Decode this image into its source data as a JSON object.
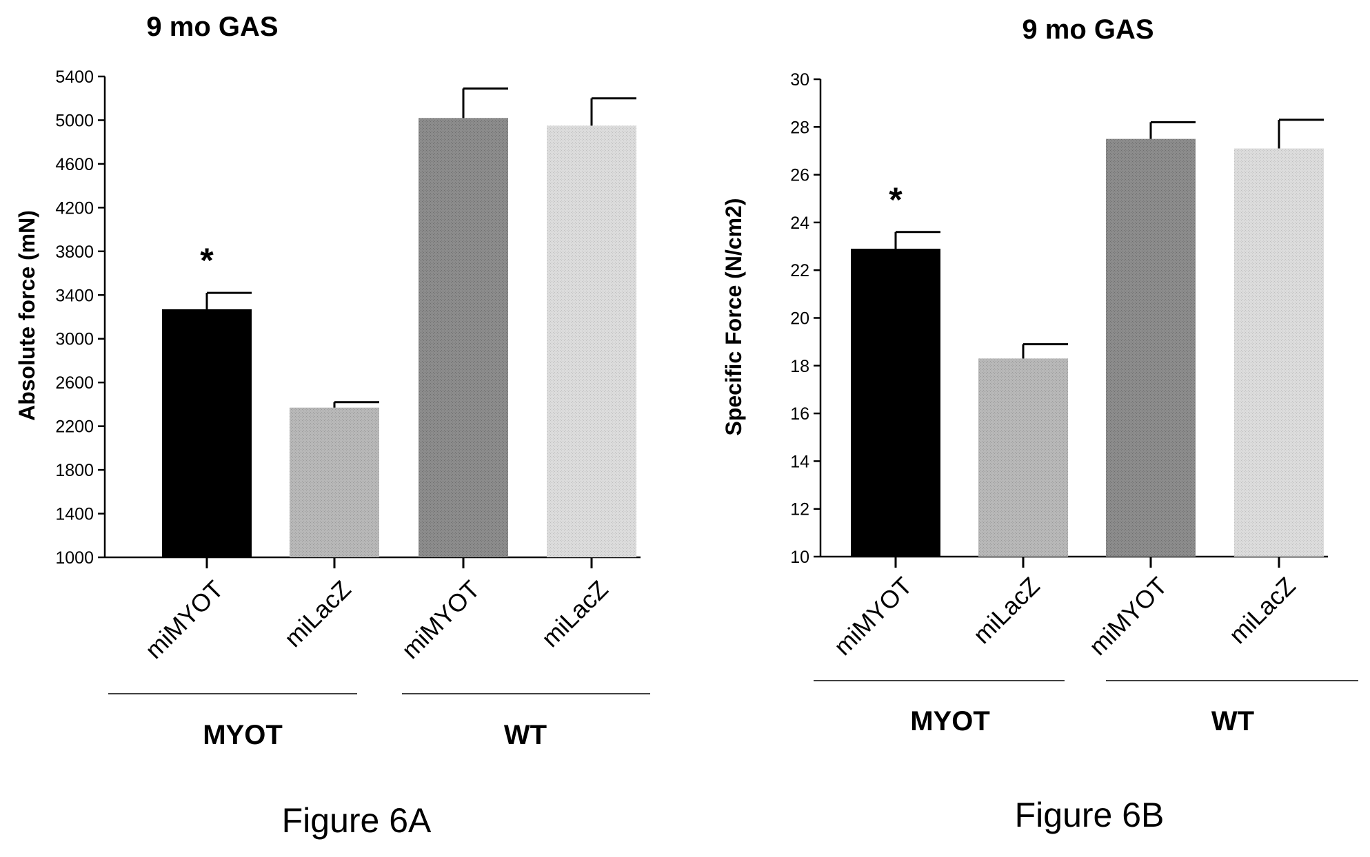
{
  "chart_data": [
    {
      "type": "bar",
      "title": "9 mo GAS",
      "ylabel": "Absolute force (mN)",
      "caption": "Figure 6A",
      "ylim": [
        1000,
        5400
      ],
      "yticks": [
        1000,
        1400,
        1800,
        2200,
        2600,
        3000,
        3400,
        3800,
        4200,
        4600,
        5000,
        5400
      ],
      "categories": [
        "miMYOT",
        "miLacZ",
        "miMYOT",
        "miLacZ"
      ],
      "values": [
        3270,
        2370,
        5020,
        4950
      ],
      "errors": [
        150,
        50,
        270,
        250
      ],
      "colors": [
        "#000000",
        "#b5b5b5",
        "#8a8a8a",
        "#d9d9d9"
      ],
      "annotations": [
        "*",
        "",
        "",
        ""
      ],
      "groups": [
        {
          "label": "MYOT",
          "categories": [
            0,
            1
          ]
        },
        {
          "label": "WT",
          "categories": [
            2,
            3
          ]
        }
      ]
    },
    {
      "type": "bar",
      "title": "9 mo GAS",
      "ylabel": "Specific Force (N/cm2)",
      "caption": "Figure 6B",
      "ylim": [
        10,
        30
      ],
      "yticks": [
        10,
        12,
        14,
        16,
        18,
        20,
        22,
        24,
        26,
        28,
        30
      ],
      "categories": [
        "miMYOT",
        "miLacZ",
        "miMYOT",
        "miLacZ"
      ],
      "values": [
        22.9,
        18.3,
        27.5,
        27.1
      ],
      "errors": [
        0.7,
        0.6,
        0.7,
        1.2
      ],
      "colors": [
        "#000000",
        "#b5b5b5",
        "#8a8a8a",
        "#d9d9d9"
      ],
      "annotations": [
        "*",
        "",
        "",
        ""
      ],
      "groups": [
        {
          "label": "MYOT",
          "categories": [
            0,
            1
          ]
        },
        {
          "label": "WT",
          "categories": [
            2,
            3
          ]
        }
      ]
    }
  ]
}
